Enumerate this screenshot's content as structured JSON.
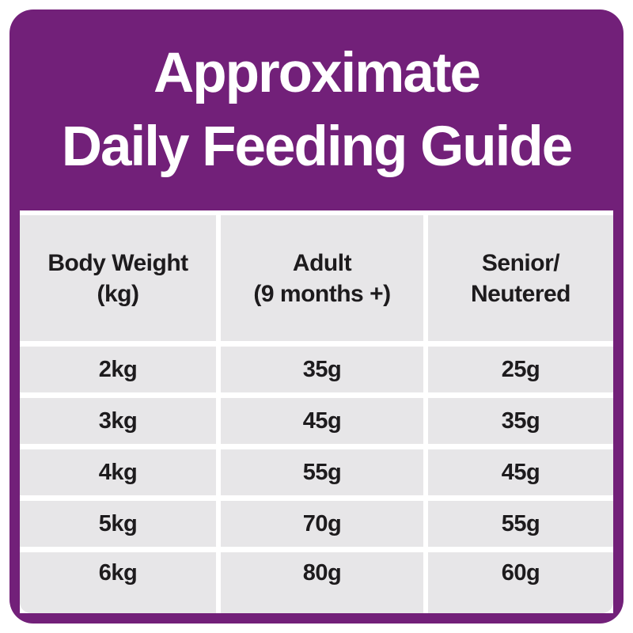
{
  "title": {
    "line1": "Approximate",
    "line2": "Daily Feeding Guide"
  },
  "table": {
    "columns": [
      {
        "line1": "Body Weight",
        "line2": "(kg)"
      },
      {
        "line1": "Adult",
        "line2": "(9 months +)"
      },
      {
        "line1": "Senior/",
        "line2": "Neutered"
      }
    ],
    "rows": [
      [
        "2kg",
        "35g",
        "25g"
      ],
      [
        "3kg",
        "45g",
        "35g"
      ],
      [
        "4kg",
        "55g",
        "45g"
      ],
      [
        "5kg",
        "70g",
        "55g"
      ],
      [
        "6kg",
        "80g",
        "60g"
      ]
    ]
  },
  "colors": {
    "panel_purple": "#722079",
    "cell_grey": "#e7e6e8",
    "text_dark": "#1d1b1d",
    "background": "#ffffff",
    "title_text": "#ffffff"
  },
  "chart_data": {
    "type": "table",
    "title": "Approximate Daily Feeding Guide",
    "columns": [
      "Body Weight (kg)",
      "Adult (9 months +)",
      "Senior/Neutered"
    ],
    "rows": [
      [
        "2kg",
        "35g",
        "25g"
      ],
      [
        "3kg",
        "45g",
        "35g"
      ],
      [
        "4kg",
        "55g",
        "45g"
      ],
      [
        "5kg",
        "70g",
        "55g"
      ],
      [
        "6kg",
        "80g",
        "60g"
      ]
    ]
  }
}
